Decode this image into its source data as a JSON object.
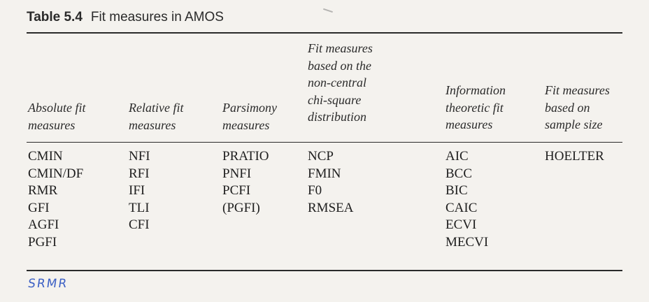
{
  "caption": {
    "number": "Table 5.4",
    "title": "Fit measures in AMOS"
  },
  "columns": [
    {
      "header": [
        "Absolute fit",
        "measures"
      ],
      "items": [
        "CMIN",
        "CMIN/DF",
        "RMR",
        "GFI",
        "AGFI",
        "PGFI"
      ]
    },
    {
      "header": [
        "Relative fit",
        "measures"
      ],
      "items": [
        "NFI",
        "RFI",
        "IFI",
        "TLI",
        "CFI"
      ]
    },
    {
      "header": [
        "Parsimony",
        "measures"
      ],
      "items": [
        "PRATIO",
        "PNFI",
        "PCFI",
        "(PGFI)"
      ]
    },
    {
      "header": [
        "Fit measures",
        "based on the",
        "non-central",
        "chi-square",
        "distribution"
      ],
      "items": [
        "NCP",
        "FMIN",
        "F0",
        "RMSEA"
      ]
    },
    {
      "header": [
        "Information",
        "theoretic fit",
        "measures"
      ],
      "items": [
        "AIC",
        "BCC",
        "BIC",
        "CAIC",
        "ECVI",
        "MECVI"
      ]
    },
    {
      "header": [
        "Fit measures",
        "based on",
        "sample size"
      ],
      "items": [
        "HOELTER"
      ]
    }
  ],
  "annotation": {
    "handwritten_note": "SRMR",
    "ink_color": "#3b5fc4"
  }
}
